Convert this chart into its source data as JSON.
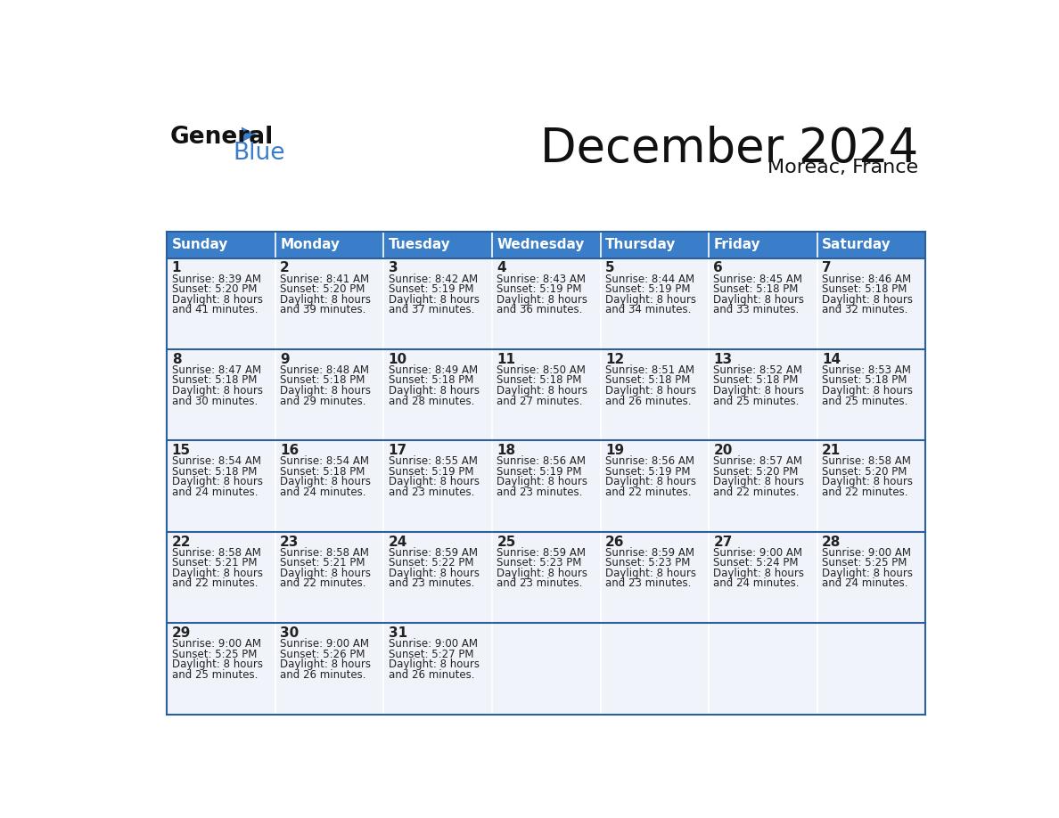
{
  "title": "December 2024",
  "subtitle": "Moreac, France",
  "header_bg_color": "#3a7dc9",
  "header_text_color": "#ffffff",
  "cell_bg_color": "#f0f4fa",
  "border_color": "#2c5f9e",
  "text_color": "#222222",
  "days_of_week": [
    "Sunday",
    "Monday",
    "Tuesday",
    "Wednesday",
    "Thursday",
    "Friday",
    "Saturday"
  ],
  "calendar_data": [
    [
      {
        "day": 1,
        "sunrise": "8:39 AM",
        "sunset": "5:20 PM",
        "daylight1": "8 hours",
        "daylight2": "and 41 minutes."
      },
      {
        "day": 2,
        "sunrise": "8:41 AM",
        "sunset": "5:20 PM",
        "daylight1": "8 hours",
        "daylight2": "and 39 minutes."
      },
      {
        "day": 3,
        "sunrise": "8:42 AM",
        "sunset": "5:19 PM",
        "daylight1": "8 hours",
        "daylight2": "and 37 minutes."
      },
      {
        "day": 4,
        "sunrise": "8:43 AM",
        "sunset": "5:19 PM",
        "daylight1": "8 hours",
        "daylight2": "and 36 minutes."
      },
      {
        "day": 5,
        "sunrise": "8:44 AM",
        "sunset": "5:19 PM",
        "daylight1": "8 hours",
        "daylight2": "and 34 minutes."
      },
      {
        "day": 6,
        "sunrise": "8:45 AM",
        "sunset": "5:18 PM",
        "daylight1": "8 hours",
        "daylight2": "and 33 minutes."
      },
      {
        "day": 7,
        "sunrise": "8:46 AM",
        "sunset": "5:18 PM",
        "daylight1": "8 hours",
        "daylight2": "and 32 minutes."
      }
    ],
    [
      {
        "day": 8,
        "sunrise": "8:47 AM",
        "sunset": "5:18 PM",
        "daylight1": "8 hours",
        "daylight2": "and 30 minutes."
      },
      {
        "day": 9,
        "sunrise": "8:48 AM",
        "sunset": "5:18 PM",
        "daylight1": "8 hours",
        "daylight2": "and 29 minutes."
      },
      {
        "day": 10,
        "sunrise": "8:49 AM",
        "sunset": "5:18 PM",
        "daylight1": "8 hours",
        "daylight2": "and 28 minutes."
      },
      {
        "day": 11,
        "sunrise": "8:50 AM",
        "sunset": "5:18 PM",
        "daylight1": "8 hours",
        "daylight2": "and 27 minutes."
      },
      {
        "day": 12,
        "sunrise": "8:51 AM",
        "sunset": "5:18 PM",
        "daylight1": "8 hours",
        "daylight2": "and 26 minutes."
      },
      {
        "day": 13,
        "sunrise": "8:52 AM",
        "sunset": "5:18 PM",
        "daylight1": "8 hours",
        "daylight2": "and 25 minutes."
      },
      {
        "day": 14,
        "sunrise": "8:53 AM",
        "sunset": "5:18 PM",
        "daylight1": "8 hours",
        "daylight2": "and 25 minutes."
      }
    ],
    [
      {
        "day": 15,
        "sunrise": "8:54 AM",
        "sunset": "5:18 PM",
        "daylight1": "8 hours",
        "daylight2": "and 24 minutes."
      },
      {
        "day": 16,
        "sunrise": "8:54 AM",
        "sunset": "5:18 PM",
        "daylight1": "8 hours",
        "daylight2": "and 24 minutes."
      },
      {
        "day": 17,
        "sunrise": "8:55 AM",
        "sunset": "5:19 PM",
        "daylight1": "8 hours",
        "daylight2": "and 23 minutes."
      },
      {
        "day": 18,
        "sunrise": "8:56 AM",
        "sunset": "5:19 PM",
        "daylight1": "8 hours",
        "daylight2": "and 23 minutes."
      },
      {
        "day": 19,
        "sunrise": "8:56 AM",
        "sunset": "5:19 PM",
        "daylight1": "8 hours",
        "daylight2": "and 22 minutes."
      },
      {
        "day": 20,
        "sunrise": "8:57 AM",
        "sunset": "5:20 PM",
        "daylight1": "8 hours",
        "daylight2": "and 22 minutes."
      },
      {
        "day": 21,
        "sunrise": "8:58 AM",
        "sunset": "5:20 PM",
        "daylight1": "8 hours",
        "daylight2": "and 22 minutes."
      }
    ],
    [
      {
        "day": 22,
        "sunrise": "8:58 AM",
        "sunset": "5:21 PM",
        "daylight1": "8 hours",
        "daylight2": "and 22 minutes."
      },
      {
        "day": 23,
        "sunrise": "8:58 AM",
        "sunset": "5:21 PM",
        "daylight1": "8 hours",
        "daylight2": "and 22 minutes."
      },
      {
        "day": 24,
        "sunrise": "8:59 AM",
        "sunset": "5:22 PM",
        "daylight1": "8 hours",
        "daylight2": "and 23 minutes."
      },
      {
        "day": 25,
        "sunrise": "8:59 AM",
        "sunset": "5:23 PM",
        "daylight1": "8 hours",
        "daylight2": "and 23 minutes."
      },
      {
        "day": 26,
        "sunrise": "8:59 AM",
        "sunset": "5:23 PM",
        "daylight1": "8 hours",
        "daylight2": "and 23 minutes."
      },
      {
        "day": 27,
        "sunrise": "9:00 AM",
        "sunset": "5:24 PM",
        "daylight1": "8 hours",
        "daylight2": "and 24 minutes."
      },
      {
        "day": 28,
        "sunrise": "9:00 AM",
        "sunset": "5:25 PM",
        "daylight1": "8 hours",
        "daylight2": "and 24 minutes."
      }
    ],
    [
      {
        "day": 29,
        "sunrise": "9:00 AM",
        "sunset": "5:25 PM",
        "daylight1": "8 hours",
        "daylight2": "and 25 minutes."
      },
      {
        "day": 30,
        "sunrise": "9:00 AM",
        "sunset": "5:26 PM",
        "daylight1": "8 hours",
        "daylight2": "and 26 minutes."
      },
      {
        "day": 31,
        "sunrise": "9:00 AM",
        "sunset": "5:27 PM",
        "daylight1": "8 hours",
        "daylight2": "and 26 minutes."
      },
      null,
      null,
      null,
      null
    ]
  ],
  "logo_general_color": "#111111",
  "logo_blue_color": "#3a7dc9",
  "logo_triangle_color": "#3a7dc9"
}
